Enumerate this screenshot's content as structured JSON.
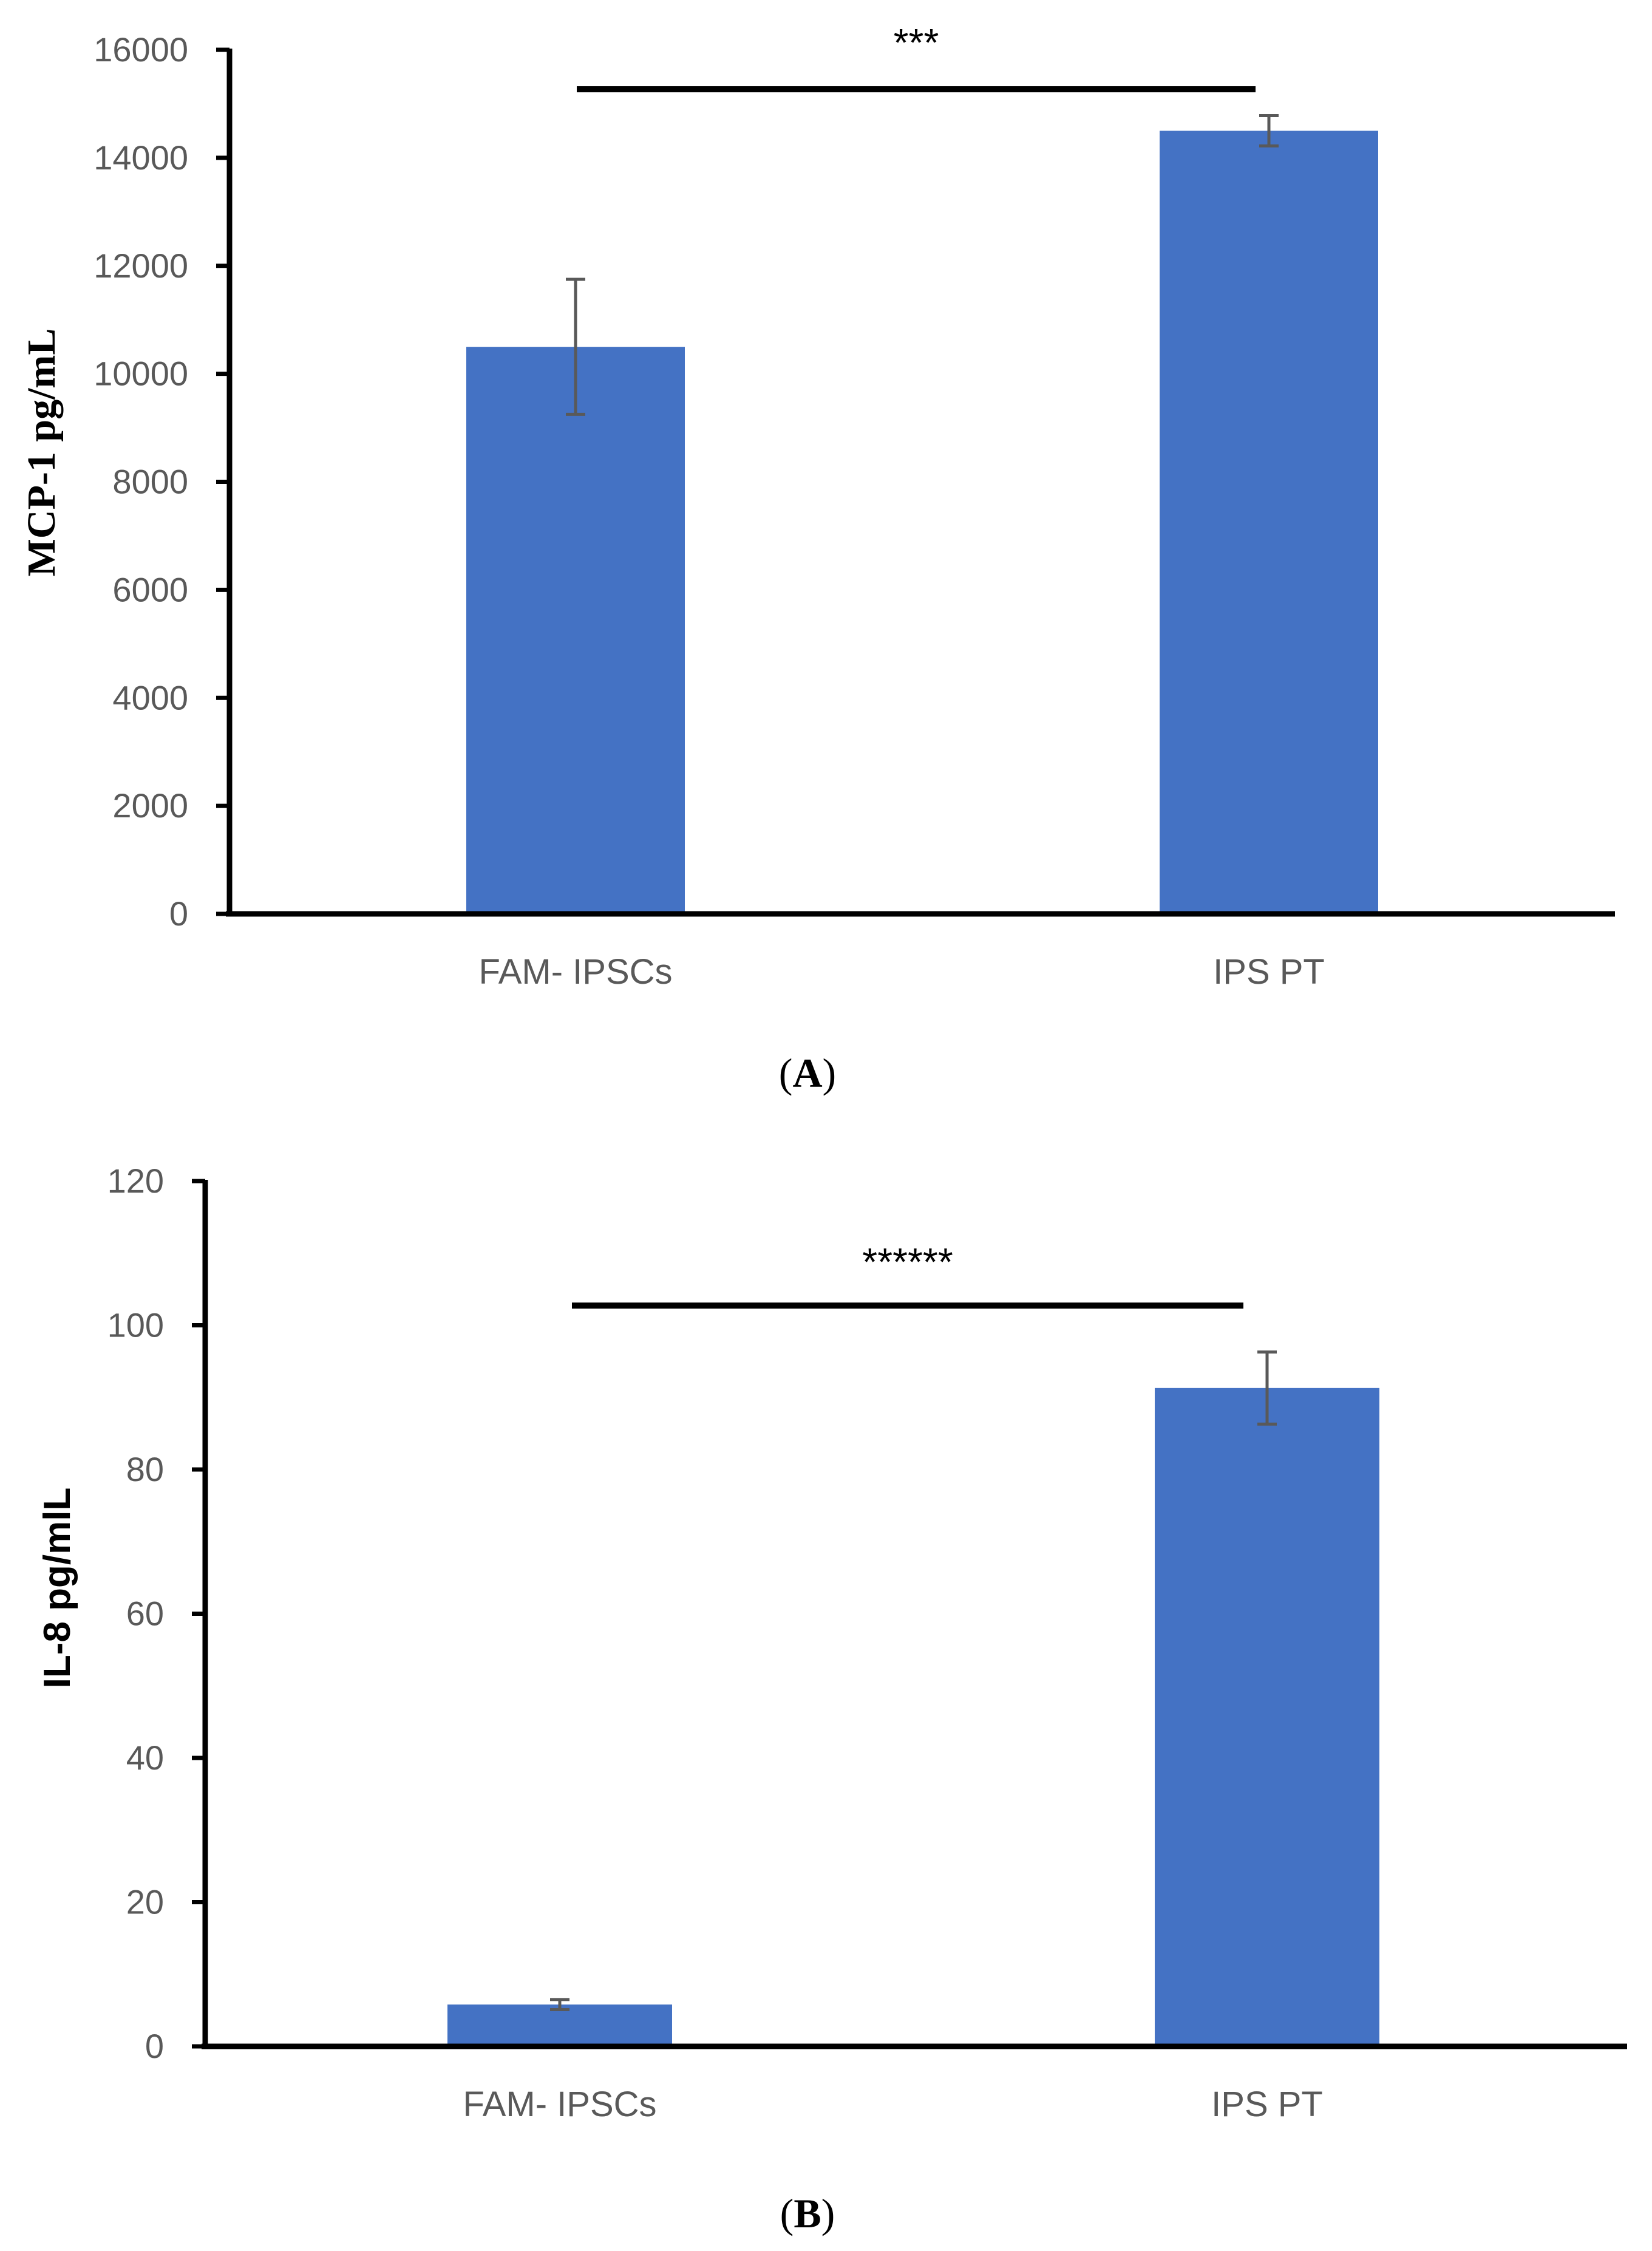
{
  "chart_data": [
    {
      "type": "bar",
      "panel_label": "A",
      "categories": [
        "FAM- IPSCs",
        "IPS PT"
      ],
      "series": [
        {
          "name": "MCP-1",
          "values": [
            10500,
            14500
          ],
          "errors": [
            1250,
            280
          ]
        }
      ],
      "ylabel": "MCP-1 pg/mL",
      "xlabel": "",
      "ylim": [
        0,
        16000
      ],
      "yticks": [
        0,
        2000,
        4000,
        6000,
        8000,
        10000,
        12000,
        14000,
        16000
      ],
      "significance": "***",
      "bar_color": "#4472C4",
      "grid": false
    },
    {
      "type": "bar",
      "panel_label": "B",
      "categories": [
        "FAM- IPSCs",
        "IPS PT"
      ],
      "series": [
        {
          "name": "IL-8",
          "values": [
            5.8,
            91.3
          ],
          "errors": [
            0.7,
            5.0
          ]
        }
      ],
      "ylabel": "IL-8 pg/mlL",
      "xlabel": "",
      "ylim": [
        0,
        120
      ],
      "yticks": [
        0,
        20,
        40,
        60,
        80,
        100,
        120
      ],
      "significance": "******",
      "bar_color": "#4472C4",
      "grid": false
    }
  ]
}
